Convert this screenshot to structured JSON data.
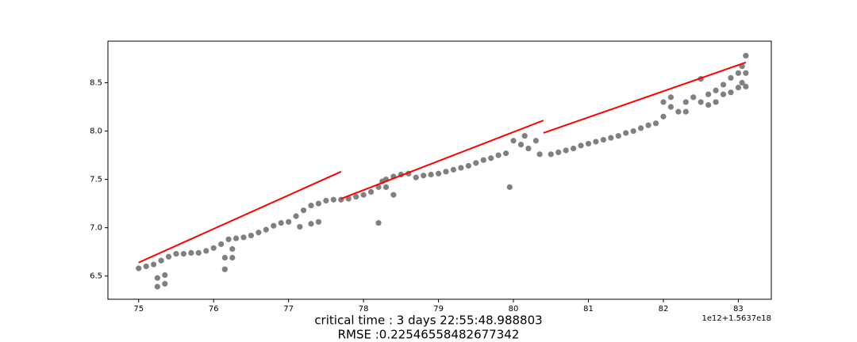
{
  "chart_data": {
    "type": "scatter",
    "series": [
      {
        "color": "#808080",
        "x": [
          75.0,
          75.1,
          75.2,
          75.25,
          75.25,
          75.3,
          75.35,
          75.35,
          75.4,
          75.5,
          75.6,
          75.7,
          75.8,
          75.9,
          76.0,
          76.1,
          76.15,
          76.15,
          76.2,
          76.25,
          76.25,
          76.3,
          76.4,
          76.5,
          76.6,
          76.7,
          76.8,
          76.9,
          77.0,
          77.1,
          77.15,
          77.2,
          77.3,
          77.3,
          77.4,
          77.4,
          77.5,
          77.6,
          77.7,
          77.8,
          77.9,
          78.0,
          78.1,
          78.2,
          78.2,
          78.25,
          78.3,
          78.3,
          78.4,
          78.4,
          78.5,
          78.6,
          78.7,
          78.8,
          78.9,
          79.0,
          79.1,
          79.2,
          79.3,
          79.4,
          79.5,
          79.6,
          79.7,
          79.8,
          79.9,
          79.95,
          80.0,
          80.1,
          80.15,
          80.2,
          80.3,
          80.35,
          80.5,
          80.6,
          80.7,
          80.8,
          80.9,
          81.0,
          81.1,
          81.2,
          81.3,
          81.4,
          81.5,
          81.6,
          81.7,
          81.8,
          81.9,
          82.0,
          82.0,
          82.1,
          82.1,
          82.2,
          82.3,
          82.3,
          82.4,
          82.5,
          82.5,
          82.6,
          82.6,
          82.7,
          82.7,
          82.8,
          82.8,
          82.9,
          82.9,
          83.0,
          83.0,
          83.05,
          83.05,
          83.1,
          83.1,
          83.1
        ],
        "values": [
          6.58,
          6.6,
          6.62,
          6.48,
          6.39,
          6.66,
          6.51,
          6.42,
          6.7,
          6.73,
          6.73,
          6.74,
          6.74,
          6.76,
          6.79,
          6.83,
          6.57,
          6.69,
          6.88,
          6.78,
          6.69,
          6.89,
          6.9,
          6.92,
          6.95,
          6.98,
          7.02,
          7.05,
          7.06,
          7.12,
          7.01,
          7.18,
          7.23,
          7.04,
          7.25,
          7.06,
          7.28,
          7.29,
          7.29,
          7.3,
          7.32,
          7.34,
          7.37,
          7.42,
          7.05,
          7.48,
          7.5,
          7.42,
          7.53,
          7.34,
          7.55,
          7.56,
          7.52,
          7.54,
          7.55,
          7.56,
          7.58,
          7.6,
          7.62,
          7.64,
          7.67,
          7.7,
          7.72,
          7.75,
          7.77,
          7.42,
          7.9,
          7.86,
          7.95,
          7.82,
          7.9,
          7.76,
          7.76,
          7.78,
          7.8,
          7.82,
          7.85,
          7.87,
          7.89,
          7.91,
          7.93,
          7.95,
          7.98,
          8.0,
          8.03,
          8.06,
          8.08,
          8.15,
          8.3,
          8.25,
          8.35,
          8.2,
          8.3,
          8.2,
          8.35,
          8.3,
          8.54,
          8.38,
          8.27,
          8.42,
          8.3,
          8.48,
          8.38,
          8.55,
          8.4,
          8.6,
          8.45,
          8.67,
          8.5,
          8.78,
          8.6,
          8.46
        ]
      }
    ],
    "fit_lines": [
      {
        "color": "#ff0000",
        "x": [
          75.0,
          77.7
        ],
        "values": [
          6.64,
          7.58
        ]
      },
      {
        "color": "#ff0000",
        "x": [
          77.7,
          80.4
        ],
        "values": [
          7.3,
          8.11
        ]
      },
      {
        "color": "#ff0000",
        "x": [
          80.4,
          83.1
        ],
        "values": [
          7.98,
          8.71
        ]
      }
    ],
    "xlim": [
      74.59,
      83.44
    ],
    "xticks": [
      75,
      76,
      77,
      78,
      79,
      80,
      81,
      82,
      83
    ],
    "ylim": [
      6.26,
      8.93
    ],
    "yticks": [
      6.5,
      {
        "value": 7,
        "label": "7.0"
      },
      7.5,
      {
        "value": 8,
        "label": "8.0"
      },
      8.5
    ],
    "x_offset_label": "1e12+1.5637e18",
    "caption": [
      "critical time : 3 days 22:55:48.988803",
      "RMSE :0.22546558482677342"
    ]
  }
}
